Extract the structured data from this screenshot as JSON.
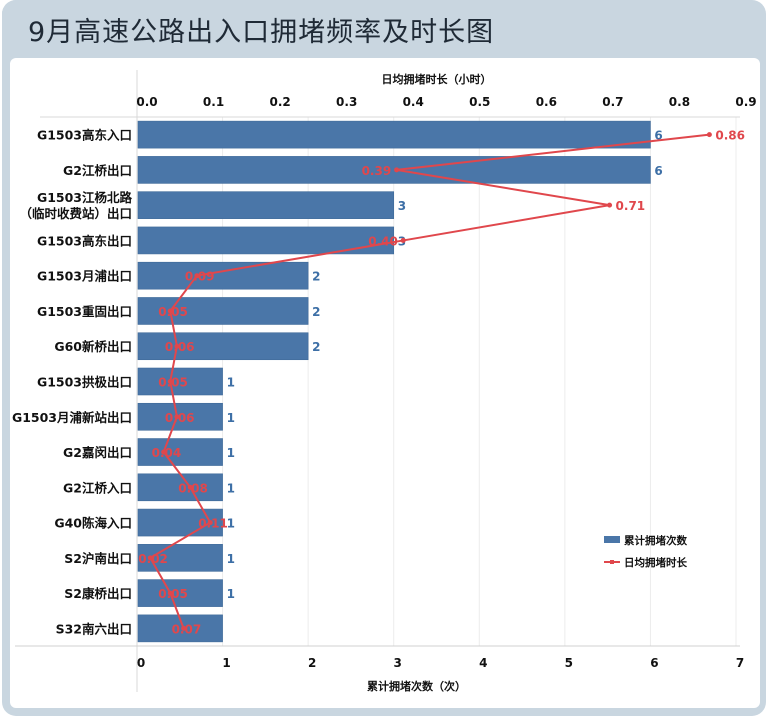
{
  "title": "9月高速公路出入口拥堵频率及时长图",
  "chart_data": {
    "type": "bar+line",
    "orientation": "horizontal",
    "categories": [
      "G1503高东入口",
      "G2江桥出口",
      "G1503江杨北路（临时收费站）出口",
      "G1503高东出口",
      "G1503月浦出口",
      "G1503重固出口",
      "G60新桥出口",
      "G1503拱极出口",
      "G1503月浦新站出口",
      "G2嘉闵出口",
      "G2江桥入口",
      "G40陈海入口",
      "S2沪南出口",
      "S2康桥出口",
      "S32南六出口"
    ],
    "category_lines": [
      [
        "G1503高东入口"
      ],
      [
        "G2江桥出口"
      ],
      [
        "G1503江杨北路",
        "（临时收费站）出口"
      ],
      [
        "G1503高东出口"
      ],
      [
        "G1503月浦出口"
      ],
      [
        "G1503重固出口"
      ],
      [
        "G60新桥出口"
      ],
      [
        "G1503拱极出口"
      ],
      [
        "G1503月浦新站出口"
      ],
      [
        "G2嘉闵出口"
      ],
      [
        "G2江桥入口"
      ],
      [
        "G40陈海入口"
      ],
      [
        "S2沪南出口"
      ],
      [
        "S2康桥出口"
      ],
      [
        "S32南六出口"
      ]
    ],
    "series": [
      {
        "name": "累计拥堵次数",
        "type": "bar",
        "axis": "bottom",
        "color": "#4a76a8",
        "label_color": "#3d6fa6",
        "values": [
          6,
          6,
          3,
          3,
          2,
          2,
          2,
          1,
          1,
          1,
          1,
          1,
          1,
          1,
          1
        ],
        "labels": [
          "6",
          "6",
          "3",
          "3",
          "2",
          "2",
          "2",
          "1",
          "1",
          "1",
          "1",
          "1",
          "1",
          "1",
          ""
        ]
      },
      {
        "name": "日均拥堵时长",
        "type": "line",
        "axis": "top",
        "color": "#e0474c",
        "values": [
          0.86,
          0.39,
          0.71,
          0.4,
          0.09,
          0.05,
          0.06,
          0.05,
          0.06,
          0.04,
          0.08,
          0.11,
          0.02,
          0.05,
          0.07
        ],
        "labels": [
          "0.86",
          "0.39",
          "0.71",
          "0.40",
          "0.09",
          "0.05",
          "0.06",
          "0.05",
          "0.06",
          "0.04",
          "0.08",
          "0.11",
          "0.02",
          "0.05",
          "0.07"
        ]
      }
    ],
    "bottom_axis": {
      "label": "累计拥堵次数（次）",
      "range": [
        0,
        7
      ],
      "ticks": [
        "0",
        "1",
        "2",
        "3",
        "4",
        "5",
        "6",
        "7"
      ]
    },
    "top_axis": {
      "label": "日均拥堵时长（小时）",
      "range": [
        0,
        0.9
      ],
      "ticks": [
        "0.0",
        "0.1",
        "0.2",
        "0.3",
        "0.4",
        "0.5",
        "0.6",
        "0.7",
        "0.8",
        "0.9"
      ]
    },
    "grid": true,
    "legend": "right"
  }
}
